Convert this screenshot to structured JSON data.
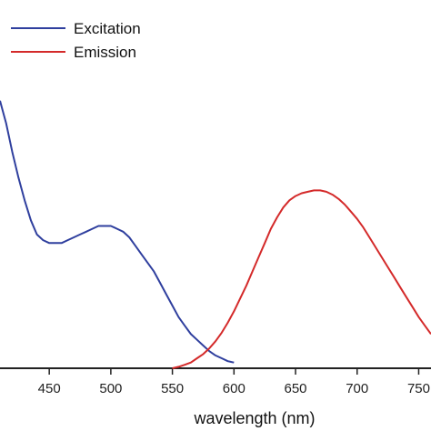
{
  "chart_data": {
    "type": "line",
    "title": "",
    "xlabel": "wavelength (nm)",
    "ylabel": "",
    "xlim": [
      410,
      760
    ],
    "ylim": [
      0,
      1
    ],
    "x_ticks": [
      450,
      500,
      550,
      600,
      650,
      700,
      750
    ],
    "x_tick_labels": [
      "450",
      "500",
      "550",
      "600",
      "650",
      "700",
      "750"
    ],
    "grid": false,
    "legend_position": "top-left",
    "series": [
      {
        "name": "Excitation",
        "color": "#2f3f9e",
        "x": [
          410,
          415,
          420,
          425,
          430,
          435,
          440,
          445,
          450,
          455,
          460,
          465,
          470,
          475,
          480,
          485,
          490,
          495,
          500,
          505,
          510,
          515,
          520,
          525,
          530,
          535,
          540,
          545,
          550,
          555,
          560,
          565,
          570,
          575,
          580,
          585,
          590,
          595,
          600
        ],
        "y": [
          0.94,
          0.86,
          0.76,
          0.67,
          0.59,
          0.52,
          0.47,
          0.45,
          0.44,
          0.44,
          0.44,
          0.45,
          0.46,
          0.47,
          0.48,
          0.49,
          0.5,
          0.5,
          0.5,
          0.49,
          0.48,
          0.46,
          0.43,
          0.4,
          0.37,
          0.34,
          0.3,
          0.26,
          0.22,
          0.18,
          0.15,
          0.12,
          0.1,
          0.08,
          0.06,
          0.045,
          0.035,
          0.025,
          0.02
        ]
      },
      {
        "name": "Emission",
        "color": "#d42a2a",
        "x": [
          550,
          555,
          560,
          565,
          570,
          575,
          580,
          585,
          590,
          595,
          600,
          605,
          610,
          615,
          620,
          625,
          630,
          635,
          640,
          645,
          650,
          655,
          660,
          665,
          670,
          675,
          680,
          685,
          690,
          695,
          700,
          705,
          710,
          715,
          720,
          725,
          730,
          735,
          740,
          745,
          750,
          755,
          760
        ],
        "y": [
          0.0,
          0.005,
          0.012,
          0.02,
          0.035,
          0.05,
          0.07,
          0.095,
          0.125,
          0.16,
          0.2,
          0.245,
          0.29,
          0.34,
          0.39,
          0.44,
          0.49,
          0.53,
          0.565,
          0.59,
          0.605,
          0.615,
          0.62,
          0.625,
          0.625,
          0.62,
          0.61,
          0.595,
          0.575,
          0.55,
          0.525,
          0.495,
          0.46,
          0.425,
          0.39,
          0.355,
          0.32,
          0.285,
          0.25,
          0.215,
          0.18,
          0.15,
          0.12
        ]
      }
    ]
  }
}
